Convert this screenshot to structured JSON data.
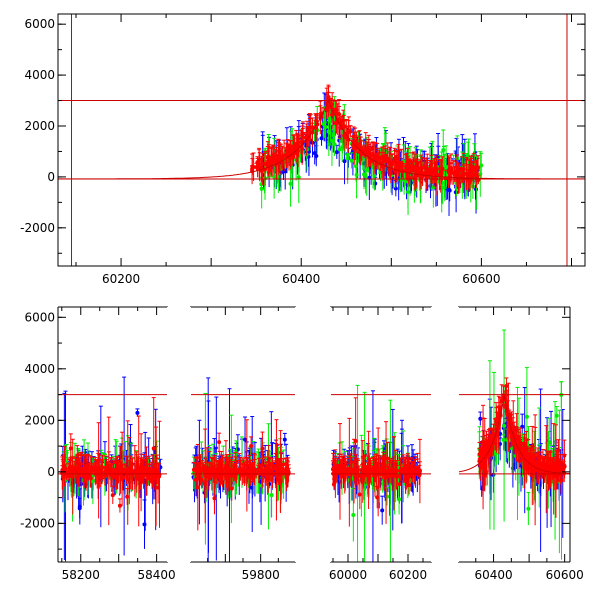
{
  "chart_data": [
    {
      "type": "scatter",
      "panel": "top",
      "description": "Light curve with error bars, full season",
      "xlim": [
        60130,
        60715
      ],
      "ylim": [
        -3500,
        6400
      ],
      "xticks": [
        60200,
        60400,
        60600
      ],
      "yticks": [
        -2000,
        0,
        2000,
        4000,
        6000
      ],
      "hlines": [
        {
          "y": 3000,
          "color": "#cc0000"
        },
        {
          "y": -80,
          "color": "#cc0000"
        }
      ],
      "vlines": [
        {
          "x": 60145,
          "color": "#cc0000"
        },
        {
          "x": 60695,
          "color": "#cc0000"
        }
      ],
      "model": {
        "type": "peaked-curve",
        "baseline": -80,
        "peak": 3000,
        "t_peak": 60430,
        "width": 35,
        "color": "#cc0000"
      },
      "series": [
        {
          "color": "#0000ff",
          "x_range": [
            60355,
            60600
          ],
          "y_center": 1000,
          "y_spread": 1500
        },
        {
          "color": "#00ee00",
          "x_range": [
            60355,
            60600
          ],
          "y_center": 1000,
          "y_spread": 1600
        },
        {
          "color": "#ff0000",
          "x_range": [
            60345,
            60600
          ],
          "y_center": 1400,
          "y_spread": 900
        }
      ]
    },
    {
      "type": "scatter",
      "panel": "bottom",
      "description": "Light curve with error bars, broken x-axis across four seasons",
      "ylim": [
        -3500,
        6400
      ],
      "yticks": [
        -2000,
        0,
        2000,
        4000,
        6000
      ],
      "hlines": [
        {
          "y": 3000,
          "color": "#cc0000"
        },
        {
          "y": -80,
          "color": "#cc0000"
        }
      ],
      "segments": [
        {
          "xlim": [
            58140,
            58430
          ],
          "xticks": [
            58200,
            58300,
            58400
          ],
          "tick_labels": [
            "58200",
            "",
            "58400"
          ],
          "data_x": [
            58150,
            58410
          ]
        },
        {
          "xlim": [
            59600,
            59900
          ],
          "xticks": [
            59700,
            59800
          ],
          "tick_labels": [
            "",
            "59800"
          ],
          "data_x": [
            59610,
            59880
          ]
        },
        {
          "xlim": [
            59940,
            60280
          ],
          "xticks": [
            60000,
            60100,
            60200
          ],
          "tick_labels": [
            "60000",
            "",
            "60200"
          ],
          "data_x": [
            59950,
            60240
          ]
        },
        {
          "xlim": [
            60300,
            60615
          ],
          "xticks": [
            60400,
            60500,
            60600
          ],
          "tick_labels": [
            "60400",
            "",
            "60600"
          ],
          "data_x": [
            60360,
            60600
          ]
        }
      ],
      "model": {
        "type": "peaked-curve",
        "baseline": -80,
        "peak": 3000,
        "t_peak": 60430,
        "width": 35,
        "color": "#cc0000"
      },
      "series_colors": [
        "#0000ff",
        "#00ee00",
        "#ff0000"
      ]
    }
  ]
}
